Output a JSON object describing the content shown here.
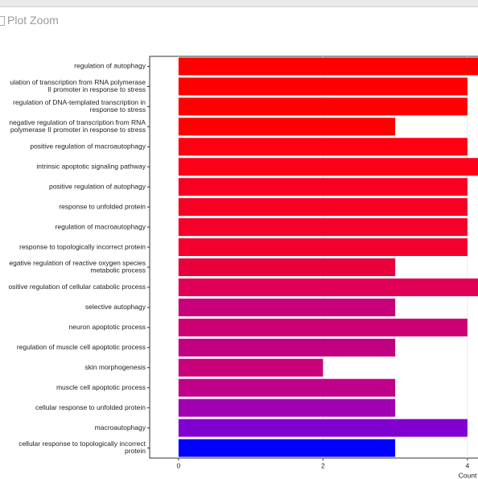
{
  "window_title": "Plot Zoom",
  "chart_data": {
    "type": "barh",
    "categories": [
      "regulation of autophagy",
      "ulation of transcription from RNA polymerase\nII promoter in response to stress",
      "regulation of DNA-templated transcription in\nresponse to stress",
      "negative regulation of transcription from RNA\npolymerase II promoter in response to stress",
      "positive regulation of macroautophagy",
      "intrinsic apoptotic signaling pathway",
      "positive regulation of autophagy",
      "response to unfolded protein",
      "regulation of macroautophagy",
      "response to topologically incorrect protein",
      "egative regulation of reactive oxygen species\nmetabolic process",
      "ositive regulation of cellular catabolic process",
      "selective autophagy",
      "neuron apoptotic process",
      "regulation of muscle cell apoptotic process",
      "skin morphogenesis",
      "muscle cell apoptotic process",
      "cellular response to unfolded protein",
      "macroautophagy",
      "cellular response to topologically incorrect\nprotein"
    ],
    "values": [
      5,
      4,
      4,
      3,
      4,
      5,
      4,
      4,
      4,
      4,
      3,
      5,
      3,
      4,
      3,
      2,
      3,
      3,
      4,
      3
    ],
    "colors": [
      "#ff0000",
      "#ff0000",
      "#ff0000",
      "#ff0000",
      "#ff0010",
      "#fc0018",
      "#f80020",
      "#f60024",
      "#f50028",
      "#f3002c",
      "#e8003a",
      "#e00055",
      "#c8007a",
      "#cc0070",
      "#c00080",
      "#c8007a",
      "#c0008a",
      "#a000b0",
      "#8000d0",
      "#0000ff"
    ],
    "x_label": "Count",
    "xlim": [
      -0.4,
      5.25
    ],
    "xticks": [
      0,
      2,
      4
    ],
    "grid": true
  }
}
